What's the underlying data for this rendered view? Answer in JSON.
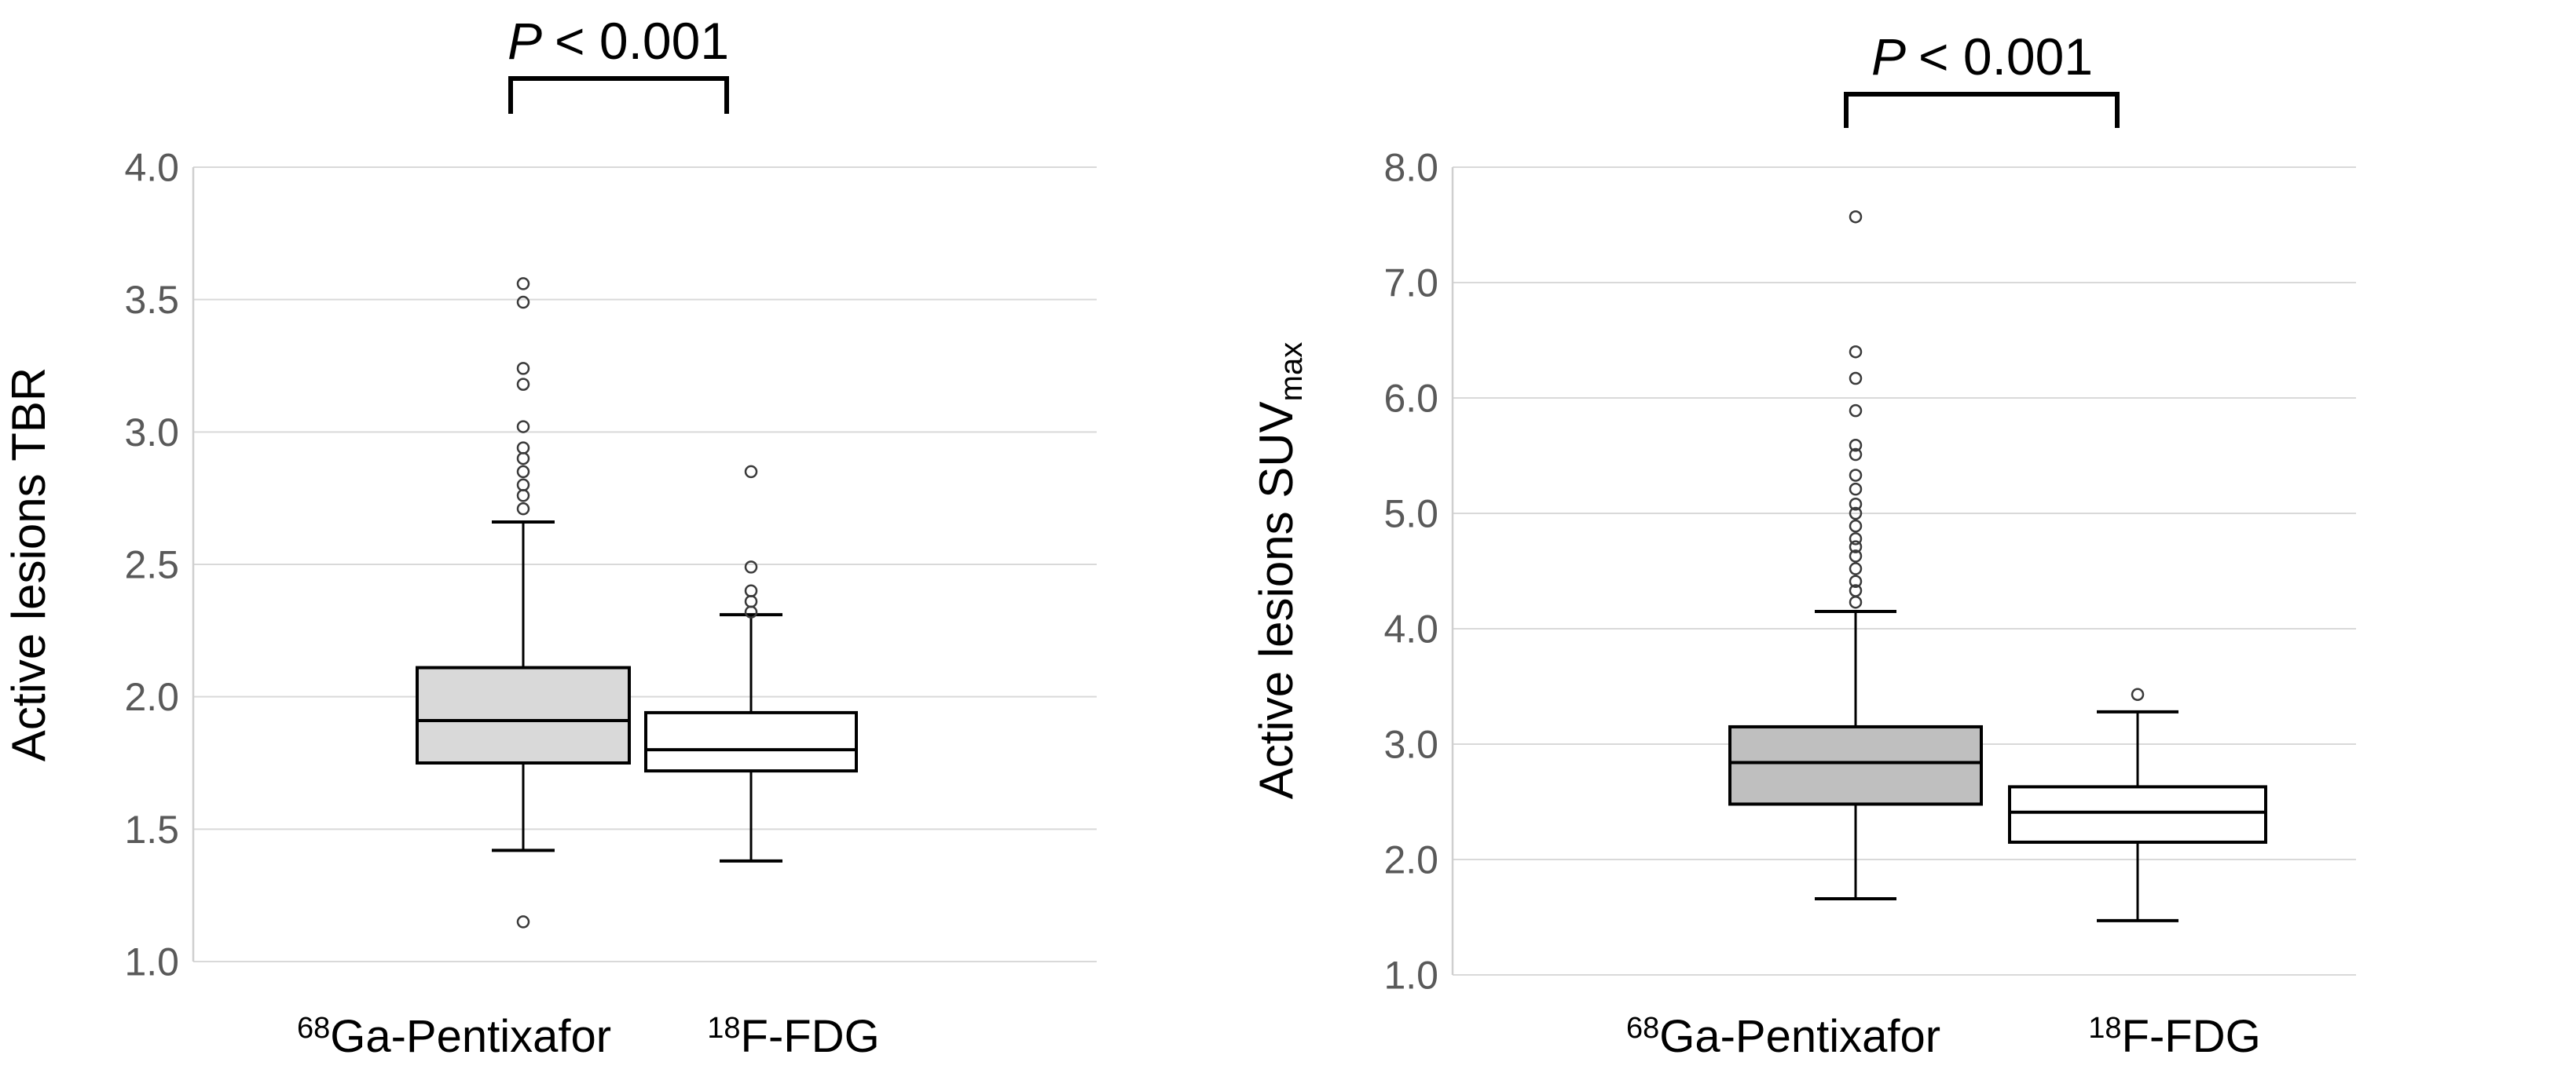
{
  "figure": {
    "description": "Two box plots comparing 68Ga-Pentixafor and 18F-FDG uptake in active lesions",
    "background": "#ffffff"
  },
  "style": {
    "box_outline": "#000000",
    "grid_color": "#d9d9d9",
    "axis_line_color": "#cfcfcf",
    "tick_label_color": "#595959",
    "text_color": "#000000",
    "outlier_color": "#3a3a3a",
    "bracket_color": "#000000"
  },
  "chart_data": [
    {
      "type": "boxplot",
      "title": "",
      "xlabel": "",
      "ylabel": "Active lesions TBR",
      "ylabel_sub": "",
      "ylim": [
        1.0,
        4.0
      ],
      "ytick_interval": 0.5,
      "yticks": [
        "4.0",
        "3.5",
        "3.0",
        "2.5",
        "2.0",
        "1.5",
        "1.0"
      ],
      "grid": true,
      "legend": "none",
      "annotation": {
        "lhs": "P",
        "rest": "< 0.001"
      },
      "categories": [
        {
          "sup": "68",
          "label": "Ga-Pentixafor"
        },
        {
          "sup": "18",
          "label": "F-FDG"
        }
      ],
      "series": [
        {
          "name": "68Ga-Pentixafor",
          "box_fill": "#d9d9d9",
          "whisker_low": 1.42,
          "q1": 1.75,
          "median": 1.91,
          "q3": 2.11,
          "whisker_high": 2.66,
          "outliers": [
            3.56,
            3.49,
            3.24,
            3.18,
            3.02,
            2.94,
            2.9,
            2.85,
            2.8,
            2.76,
            2.71,
            1.15
          ]
        },
        {
          "name": "18F-FDG",
          "box_fill": "#ffffff",
          "whisker_low": 1.38,
          "q1": 1.72,
          "median": 1.8,
          "q3": 1.94,
          "whisker_high": 2.31,
          "outliers": [
            2.85,
            2.49,
            2.4,
            2.36,
            2.32
          ]
        }
      ]
    },
    {
      "type": "boxplot",
      "title": "",
      "xlabel": "",
      "ylabel": "Active lesions SUV",
      "ylabel_sub": "max",
      "ylim": [
        1.0,
        8.0
      ],
      "ytick_interval": 1.0,
      "yticks": [
        "8.0",
        "7.0",
        "6.0",
        "5.0",
        "4.0",
        "3.0",
        "2.0",
        "1.0"
      ],
      "grid": true,
      "legend": "none",
      "annotation": {
        "lhs": "P",
        "rest": "< 0.001"
      },
      "categories": [
        {
          "sup": "68",
          "label": "Ga-Pentixafor"
        },
        {
          "sup": "18",
          "label": "F-FDG"
        }
      ],
      "series": [
        {
          "name": "68Ga-Pentixafor",
          "box_fill": "#bfbfbf",
          "whisker_low": 1.66,
          "q1": 2.48,
          "median": 2.84,
          "q3": 3.15,
          "whisker_high": 4.15,
          "outliers": [
            7.57,
            6.4,
            6.17,
            5.89,
            5.59,
            5.51,
            5.33,
            5.21,
            5.08,
            5.0,
            4.89,
            4.78,
            4.71,
            4.63,
            4.52,
            4.41,
            4.33,
            4.23
          ]
        },
        {
          "name": "18F-FDG",
          "box_fill": "#ffffff",
          "whisker_low": 1.47,
          "q1": 2.15,
          "median": 2.41,
          "q3": 2.63,
          "whisker_high": 3.28,
          "outliers": [
            3.43
          ]
        }
      ]
    }
  ]
}
